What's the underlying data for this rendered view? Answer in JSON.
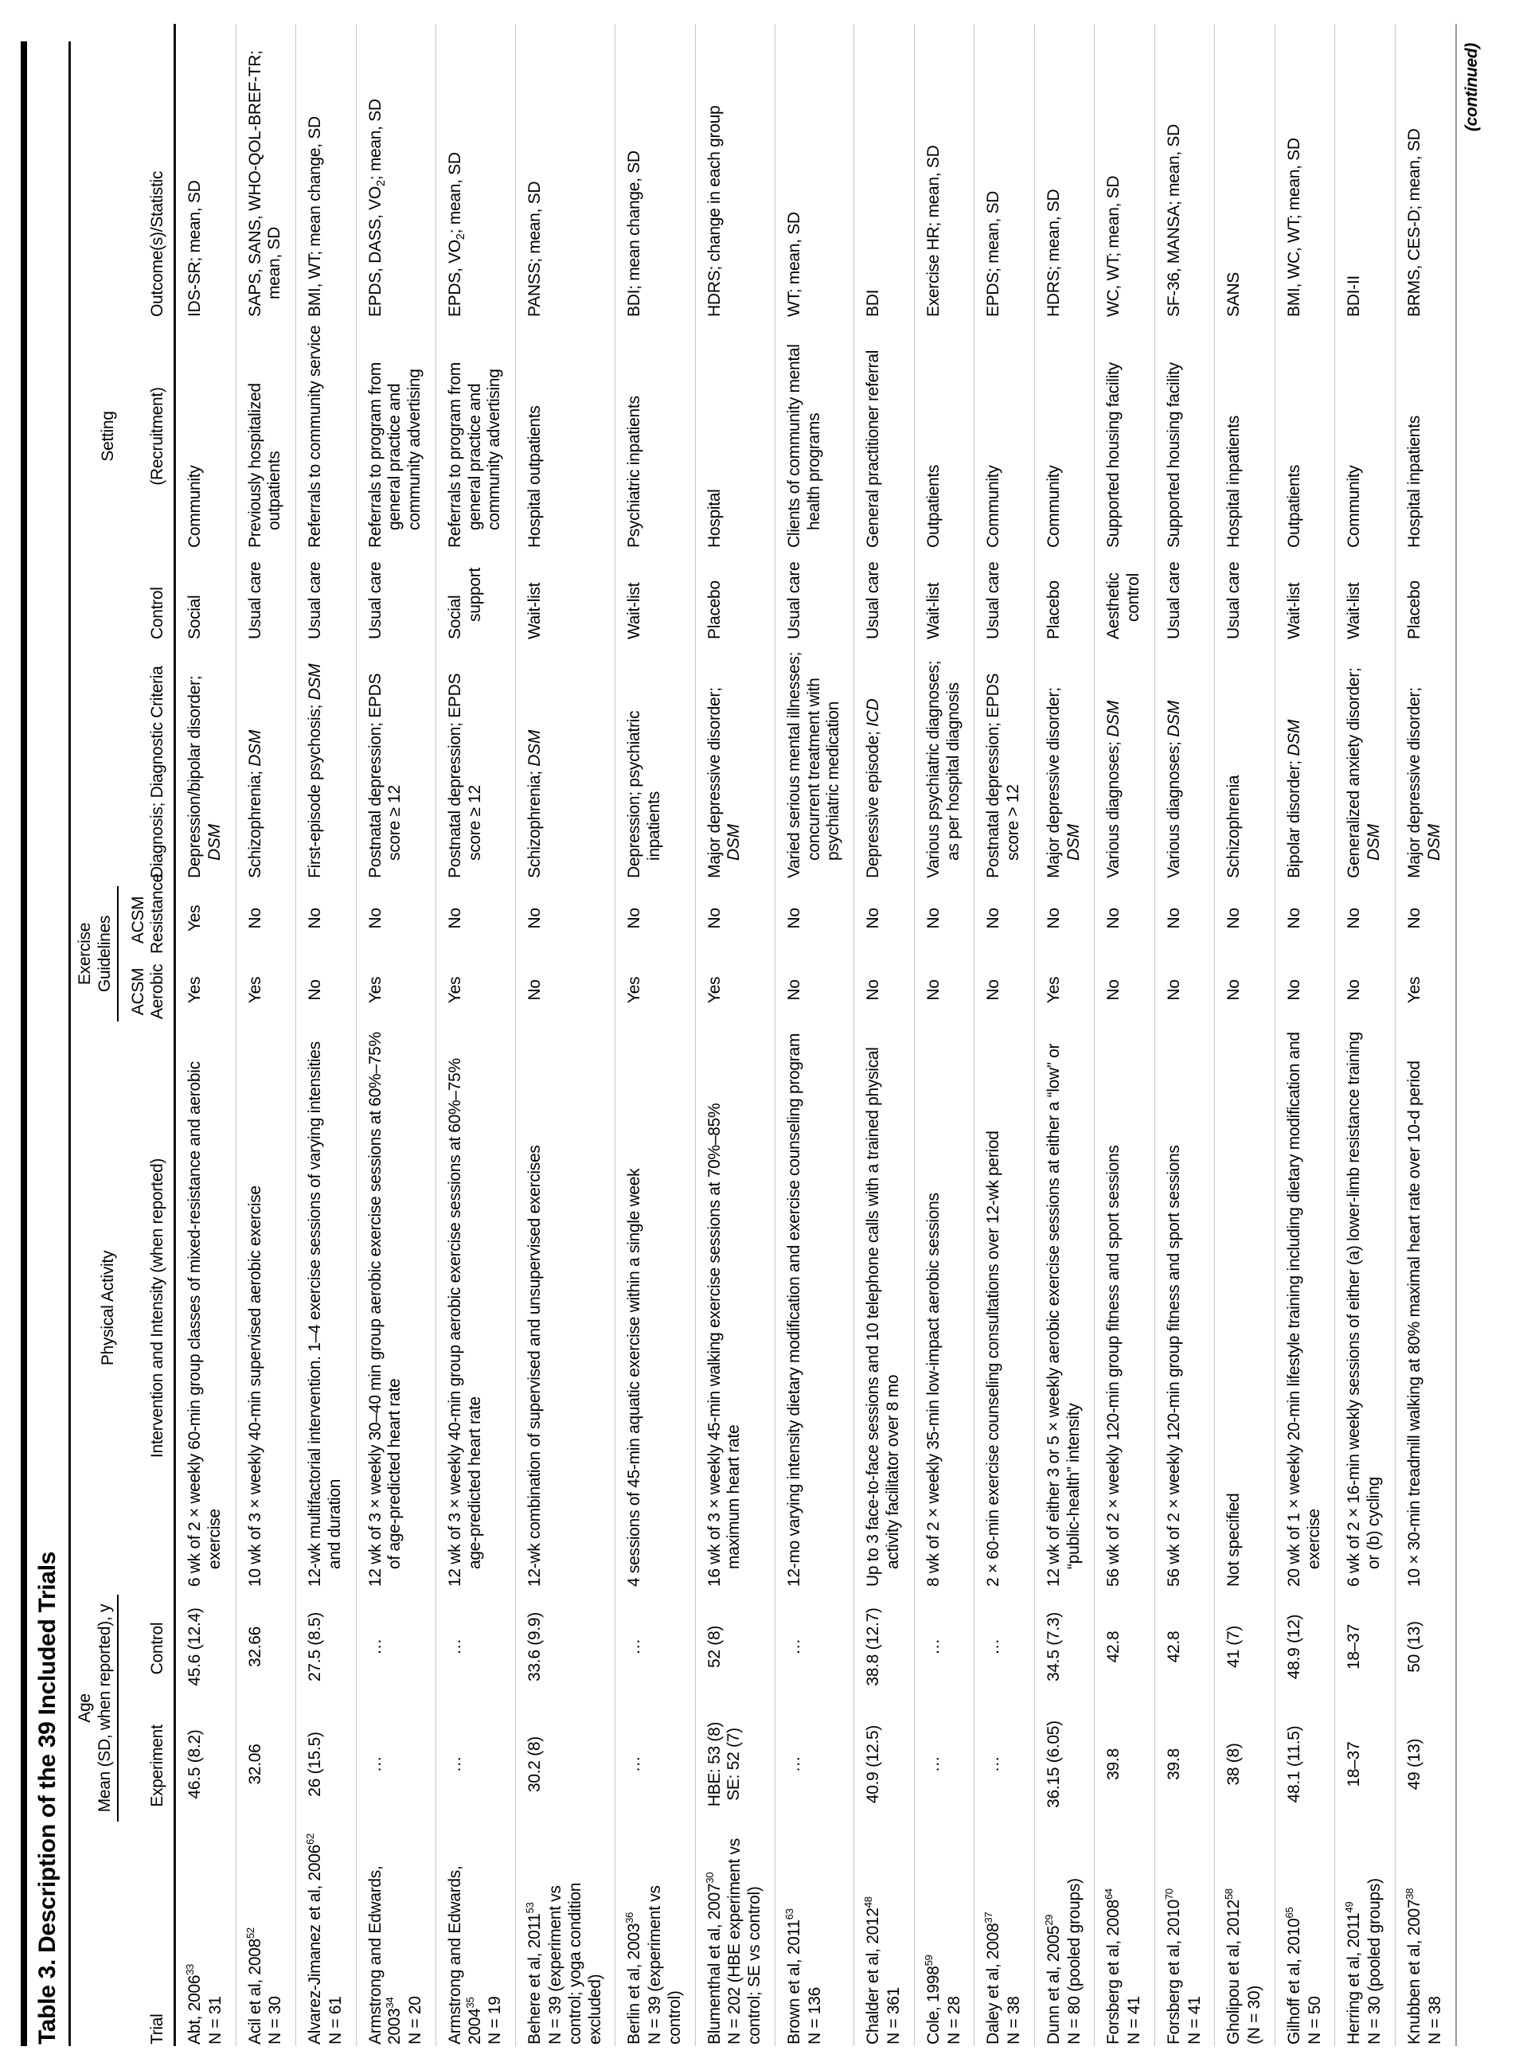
{
  "title": "Table 3. Description of the 39 Included Trials",
  "continued": "(continued)",
  "header": {
    "trial": "Trial",
    "age_group": "Age",
    "age_sub": "Mean (SD, when reported), y",
    "experiment": "Experiment",
    "control_age": "Control",
    "pa_1": "Physical Activity",
    "pa_2": "Intervention and Intensity (when reported)",
    "guidelines": "Exercise Guidelines",
    "acsm": "ACSM",
    "aerobic": "Aerobic",
    "resistance": "Resistance",
    "diagnosis": "Diagnosis; Diagnostic Criteria",
    "control_arm": "Control",
    "setting_1": "Setting",
    "setting_2": "(Recruitment)",
    "outcome": "Outcome(s)/Statistic"
  },
  "rows": [
    {
      "trial": {
        "name": "Abt, 2006",
        "ref": "33",
        "n": "N = 31"
      },
      "age_exp": "46.5 (8.2)",
      "age_ctrl": "45.6 (12.4)",
      "pa": "6 wk of 2 × weekly 60-min group classes of mixed-resistance and aerobic exercise",
      "acsm_aerobic": "Yes",
      "acsm_resistance": "Yes",
      "diagnosis": "Depression/bipolar disorder; ",
      "diagnosis_i": "DSM",
      "control": "Social",
      "setting": "Community",
      "outcome": "IDS-SR; mean, SD"
    },
    {
      "trial": {
        "name": "Acil et al, 2008",
        "ref": "52",
        "n": "N = 30"
      },
      "age_exp": "32.06",
      "age_ctrl": "32.66",
      "pa": "10 wk of 3 × weekly 40-min supervised aerobic exercise",
      "acsm_aerobic": "Yes",
      "acsm_resistance": "No",
      "diagnosis": "Schizophrenia; ",
      "diagnosis_i": "DSM",
      "control": "Usual care",
      "setting": "Previously hospitalized outpatients",
      "outcome": "SAPS, SANS, WHO-QOL-BREF-TR; mean, SD"
    },
    {
      "trial": {
        "name": "Alvarez-Jimanez et al, 2006",
        "ref": "62",
        "n": "N = 61"
      },
      "age_exp": "26 (15.5)",
      "age_ctrl": "27.5 (8.5)",
      "pa": "12-wk multifactorial intervention. 1–4 exercise sessions of varying intensities and duration",
      "acsm_aerobic": "No",
      "acsm_resistance": "No",
      "diagnosis": "First-episode psychosis; ",
      "diagnosis_i": "DSM",
      "control": "Usual care",
      "setting": "Referrals to community service",
      "outcome": "BMI, WT; mean change, SD"
    },
    {
      "trial": {
        "name": "Armstrong and Edwards, 2003",
        "ref": "34",
        "n": "N = 20"
      },
      "age_exp": "…",
      "age_ctrl": "…",
      "pa": "12 wk of 3 × weekly 30–40 min group aerobic exercise sessions at 60%–75% of age-predicted heart rate",
      "acsm_aerobic": "Yes",
      "acsm_resistance": "No",
      "diagnosis": "Postnatal depression; EPDS score ≥ 12",
      "diagnosis_i": "",
      "control": "Usual care",
      "setting": "Referrals to program from general practice and community advertising",
      "outcome": "EPDS, DASS, VO₂; mean, SD"
    },
    {
      "trial": {
        "name": "Armstrong and Edwards, 2004",
        "ref": "35",
        "n": "N = 19"
      },
      "age_exp": "…",
      "age_ctrl": "…",
      "pa": "12 wk of 3 × weekly 40-min group aerobic exercise sessions at 60%–75% age-predicted heart rate",
      "acsm_aerobic": "Yes",
      "acsm_resistance": "No",
      "diagnosis": "Postnatal depression; EPDS score ≥ 12",
      "diagnosis_i": "",
      "control": "Social support",
      "setting": "Referrals to program from general practice and community advertising",
      "outcome": "EPDS, VO₂; mean, SD"
    },
    {
      "trial": {
        "name": "Behere et al, 2011",
        "ref": "53",
        "n": "N = 39 (experiment vs control; yoga condition excluded)"
      },
      "age_exp": "30.2 (8)",
      "age_ctrl": "33.6 (9.9)",
      "pa": "12-wk combination of supervised and unsupervised exercises",
      "acsm_aerobic": "No",
      "acsm_resistance": "No",
      "diagnosis": "Schizophrenia; ",
      "diagnosis_i": "DSM",
      "control": "Wait-list",
      "setting": "Hospital outpatients",
      "outcome": "PANSS; mean, SD"
    },
    {
      "trial": {
        "name": "Berlin et al, 2003",
        "ref": "36",
        "n": "N = 39 (experiment vs control)"
      },
      "age_exp": "…",
      "age_ctrl": "…",
      "pa": "4 sessions of 45-min aquatic exercise within a single week",
      "acsm_aerobic": "Yes",
      "acsm_resistance": "No",
      "diagnosis": "Depression; psychiatric inpatients",
      "diagnosis_i": "",
      "control": "Wait-list",
      "setting": "Psychiatric inpatients",
      "outcome": "BDI; mean change, SD"
    },
    {
      "trial": {
        "name": "Blumenthal et al, 2007",
        "ref": "30",
        "n": "N = 202 (HBE experiment vs control; SE vs control)"
      },
      "age_exp": [
        "HBE: 53 (8)",
        "SE: 52 (7)"
      ],
      "age_ctrl": "52 (8)",
      "pa": "16 wk of 3 × weekly 45-min walking exercise sessions at 70%–85% maximum heart rate",
      "acsm_aerobic": "Yes",
      "acsm_resistance": "No",
      "diagnosis": "Major depressive disorder; ",
      "diagnosis_i": "DSM",
      "control": "Placebo",
      "setting": "Hospital",
      "outcome": "HDRS; change in each group"
    },
    {
      "trial": {
        "name": "Brown et al, 2011",
        "ref": "63",
        "n": "N = 136"
      },
      "age_exp": "…",
      "age_ctrl": "…",
      "pa": "12-mo varying intensity dietary modification and exercise counseling program",
      "acsm_aerobic": "No",
      "acsm_resistance": "No",
      "diagnosis": "Varied serious mental illnesses; concurrent treatment with psychiatric medication",
      "diagnosis_i": "",
      "control": "Usual care",
      "setting": "Clients of community mental health programs",
      "outcome": "WT; mean, SD"
    },
    {
      "trial": {
        "name": "Chalder et al, 2012",
        "ref": "48",
        "n": "N = 361"
      },
      "age_exp": "40.9 (12.5)",
      "age_ctrl": "38.8 (12.7)",
      "pa": "Up to 3 face-to-face sessions and 10 telephone calls with a trained physical activity facilitator over 8 mo",
      "acsm_aerobic": "No",
      "acsm_resistance": "No",
      "diagnosis": "Depressive episode; ",
      "diagnosis_i": "ICD",
      "control": "Usual care",
      "setting": "General practitioner referral",
      "outcome": "BDI"
    },
    {
      "trial": {
        "name": "Cole, 1998",
        "ref": "59",
        "n": "N = 28"
      },
      "age_exp": "…",
      "age_ctrl": "…",
      "pa": "8 wk of 2 × weekly 35-min low-impact aerobic sessions",
      "acsm_aerobic": "No",
      "acsm_resistance": "No",
      "diagnosis": "Various psychiatric diagnoses; as per hospital diagnosis",
      "diagnosis_i": "",
      "control": "Wait-list",
      "setting": "Outpatients",
      "outcome": "Exercise HR; mean, SD"
    },
    {
      "trial": {
        "name": "Daley et al, 2008",
        "ref": "37",
        "n": "N = 38"
      },
      "age_exp": "…",
      "age_ctrl": "…",
      "pa": "2 × 60-min exercise counseling consultations over 12-wk period",
      "acsm_aerobic": "No",
      "acsm_resistance": "No",
      "diagnosis": "Postnatal depression; EPDS score > 12",
      "diagnosis_i": "",
      "control": "Usual care",
      "setting": "Community",
      "outcome": "EPDS; mean, SD"
    },
    {
      "trial": {
        "name": "Dunn et al, 2005",
        "ref": "29",
        "n": "N = 80 (pooled groups)"
      },
      "age_exp": "36.15 (6.05)",
      "age_ctrl": "34.5 (7.3)",
      "pa": "12 wk of either 3 or 5 × weekly aerobic exercise sessions at either a “low” or “public-health” intensity",
      "acsm_aerobic": "Yes",
      "acsm_resistance": "No",
      "diagnosis": "Major depressive disorder; ",
      "diagnosis_i": "DSM",
      "control": "Placebo",
      "setting": "Community",
      "outcome": "HDRS; mean, SD"
    },
    {
      "trial": {
        "name": "Forsberg et al, 2008",
        "ref": "64",
        "n": "N = 41"
      },
      "age_exp": "39.8",
      "age_ctrl": "42.8",
      "pa": "56 wk of 2 × weekly 120-min group fitness and sport sessions",
      "acsm_aerobic": "No",
      "acsm_resistance": "No",
      "diagnosis": "Various diagnoses; ",
      "diagnosis_i": "DSM",
      "control": "Aesthetic control",
      "setting": "Supported housing facility",
      "outcome": "WC, WT; mean, SD"
    },
    {
      "trial": {
        "name": "Forsberg et al, 2010",
        "ref": "70",
        "n": "N = 41"
      },
      "age_exp": "39.8",
      "age_ctrl": "42.8",
      "pa": "56 wk of 2 × weekly 120-min group fitness and sport sessions",
      "acsm_aerobic": "No",
      "acsm_resistance": "No",
      "diagnosis": "Various diagnoses; ",
      "diagnosis_i": "DSM",
      "control": "Usual care",
      "setting": "Supported housing facility",
      "outcome": "SF-36, MANSA; mean, SD"
    },
    {
      "trial": {
        "name": "Gholipou et al, 2012",
        "ref": "58",
        "n": "(N = 30)"
      },
      "age_exp": "38 (8)",
      "age_ctrl": "41 (7)",
      "pa": "Not specified",
      "acsm_aerobic": "No",
      "acsm_resistance": "No",
      "diagnosis": "Schizophrenia",
      "diagnosis_i": "",
      "control": "Usual care",
      "setting": "Hospital inpatients",
      "outcome": "SANS"
    },
    {
      "trial": {
        "name": "Gilhoff et al, 2010",
        "ref": "65",
        "n": "N = 50"
      },
      "age_exp": "48.1 (11.5)",
      "age_ctrl": "48.9 (12)",
      "pa": "20 wk of 1 × weekly 20-min lifestyle training including dietary modification and exercise",
      "acsm_aerobic": "No",
      "acsm_resistance": "No",
      "diagnosis": "Bipolar disorder; ",
      "diagnosis_i": "DSM",
      "control": "Wait-list",
      "setting": "Outpatients",
      "outcome": "BMI, WC, WT; mean, SD"
    },
    {
      "trial": {
        "name": "Herring et al, 2011",
        "ref": "49",
        "n": "N = 30 (pooled groups)"
      },
      "age_exp": "18–37",
      "age_ctrl": "18–37",
      "pa": "6 wk of 2 × 16-min weekly sessions of either (a) lower-limb resistance training or (b) cycling",
      "acsm_aerobic": "No",
      "acsm_resistance": "No",
      "diagnosis": "Generalized anxiety disorder; ",
      "diagnosis_i": "DSM",
      "control": "Wait-list",
      "setting": "Community",
      "outcome": "BDI-II"
    },
    {
      "trial": {
        "name": "Knubben et al, 2007",
        "ref": "38",
        "n": "N = 38"
      },
      "age_exp": "49 (13)",
      "age_ctrl": "50 (13)",
      "pa": "10 × 30-min treadmill walking at 80% maximal heart rate over 10-d period",
      "acsm_aerobic": "Yes",
      "acsm_resistance": "No",
      "diagnosis": "Major depressive disorder; ",
      "diagnosis_i": "DSM",
      "control": "Placebo",
      "setting": "Hospital inpatients",
      "outcome": "BRMS, CES-D; mean, SD"
    }
  ]
}
